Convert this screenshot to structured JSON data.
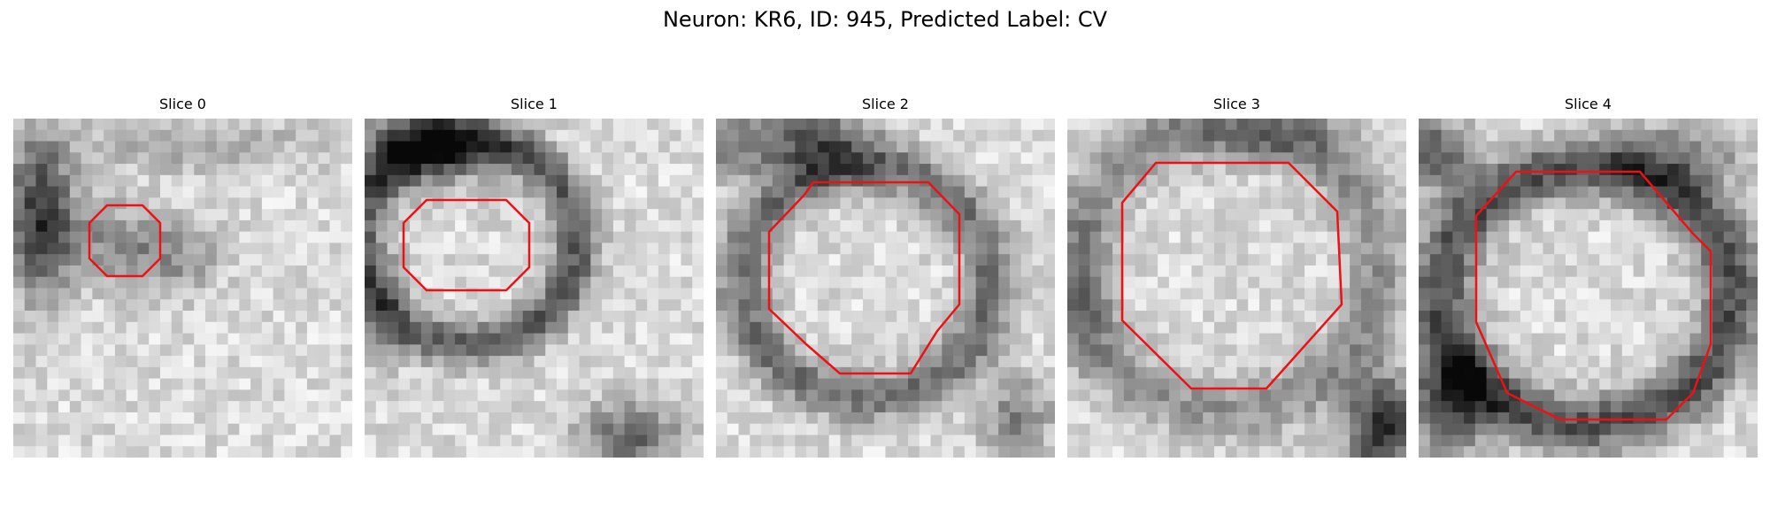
{
  "figure": {
    "title": "Neuron: KR6, ID: 945, Predicted Label: CV"
  },
  "panels": [
    {
      "title": "Slice 0",
      "contour_color": "#ee1111",
      "contour_polygon": [
        [
          106,
          98
        ],
        [
          146,
          98
        ],
        [
          166,
          118
        ],
        [
          166,
          158
        ],
        [
          146,
          178
        ],
        [
          106,
          178
        ],
        [
          86,
          158
        ],
        [
          86,
          118
        ]
      ],
      "dark_blobs": [
        [
          30,
          110,
          38,
          90,
          0.62
        ],
        [
          115,
          140,
          70,
          45,
          0.28
        ],
        [
          185,
          160,
          50,
          40,
          0.22
        ],
        [
          200,
          30,
          160,
          30,
          0.18
        ]
      ]
    },
    {
      "title": "Slice 1",
      "contour_color": "#ee1111",
      "contour_polygon": [
        [
          70,
          92
        ],
        [
          160,
          92
        ],
        [
          186,
          118
        ],
        [
          186,
          168
        ],
        [
          160,
          194
        ],
        [
          70,
          194
        ],
        [
          44,
          168
        ],
        [
          44,
          118
        ]
      ],
      "dark_blobs": [
        [
          115,
          140,
          125,
          115,
          0.5,
          1
        ],
        [
          70,
          30,
          80,
          45,
          0.55
        ],
        [
          300,
          360,
          60,
          40,
          0.45
        ],
        [
          20,
          200,
          30,
          80,
          0.2
        ]
      ]
    },
    {
      "title": "Slice 2",
      "contour_color": "#ee1111",
      "contour_polygon": [
        [
          110,
          72
        ],
        [
          240,
          72
        ],
        [
          275,
          108
        ],
        [
          275,
          210
        ],
        [
          250,
          240
        ],
        [
          220,
          288
        ],
        [
          140,
          288
        ],
        [
          102,
          255
        ],
        [
          60,
          215
        ],
        [
          60,
          128
        ],
        [
          100,
          86
        ]
      ],
      "dark_blobs": [
        [
          170,
          185,
          140,
          130,
          0.42,
          1
        ],
        [
          110,
          25,
          70,
          40,
          0.5
        ],
        [
          340,
          340,
          40,
          50,
          0.35
        ],
        [
          20,
          30,
          40,
          40,
          0.3
        ]
      ]
    },
    {
      "title": "Slice 3",
      "contour_color": "#ee1111",
      "contour_polygon": [
        [
          100,
          50
        ],
        [
          250,
          50
        ],
        [
          305,
          105
        ],
        [
          310,
          210
        ],
        [
          225,
          305
        ],
        [
          140,
          305
        ],
        [
          62,
          228
        ],
        [
          62,
          95
        ]
      ],
      "dark_blobs": [
        [
          180,
          170,
          170,
          160,
          0.28,
          1
        ],
        [
          355,
          350,
          40,
          60,
          0.7
        ],
        [
          20,
          200,
          30,
          90,
          0.2
        ],
        [
          230,
          20,
          120,
          30,
          0.22
        ]
      ]
    },
    {
      "title": "Slice 4",
      "contour_color": "#ee1111",
      "contour_polygon": [
        [
          110,
          60
        ],
        [
          250,
          60
        ],
        [
          310,
          130
        ],
        [
          330,
          150
        ],
        [
          330,
          255
        ],
        [
          310,
          310
        ],
        [
          280,
          340
        ],
        [
          160,
          340
        ],
        [
          100,
          310
        ],
        [
          65,
          230
        ],
        [
          65,
          110
        ]
      ],
      "dark_blobs": [
        [
          190,
          200,
          165,
          145,
          0.55,
          1
        ],
        [
          35,
          320,
          50,
          60,
          0.55
        ],
        [
          20,
          40,
          40,
          40,
          0.5
        ],
        [
          300,
          40,
          80,
          40,
          0.3
        ]
      ]
    }
  ]
}
